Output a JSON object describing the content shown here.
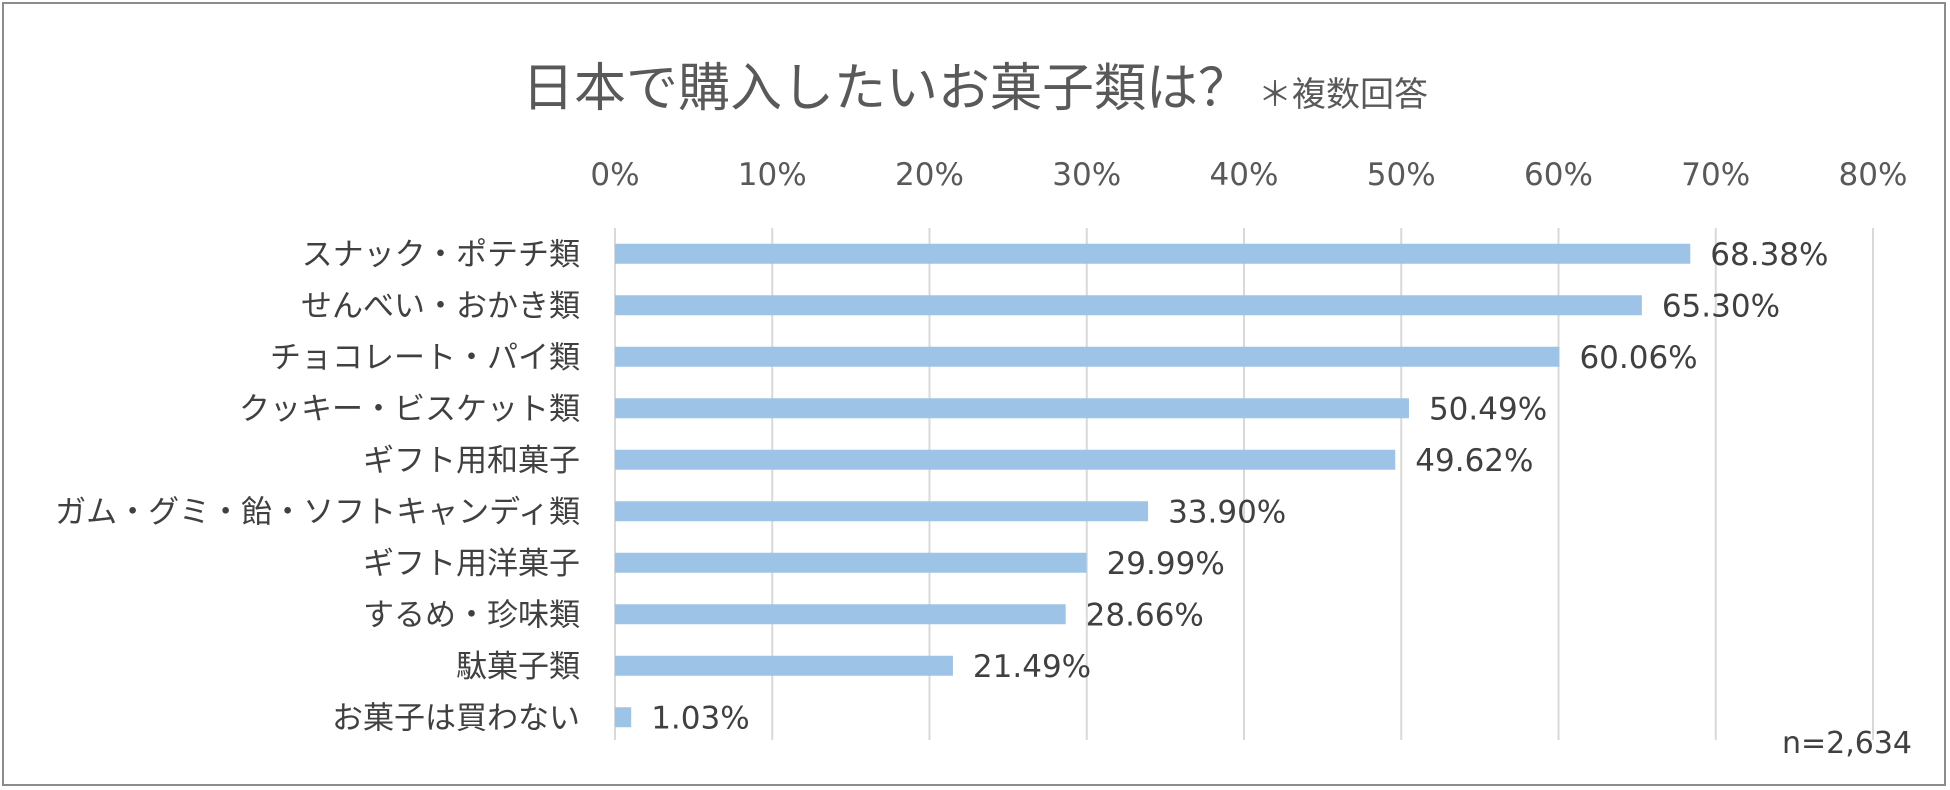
{
  "chart_data": {
    "type": "bar",
    "orientation": "horizontal",
    "title": "日本で購入したいお菓子類は？",
    "subtitle": "＊複数回答",
    "categories": [
      "スナック・ポテチ類",
      "せんべい・おかき類",
      "チョコレート・パイ類",
      "クッキー・ビスケット類",
      "ギフト用和菓子",
      "ガム・グミ・飴・ソフトキャンディ類",
      "ギフト用洋菓子",
      "するめ・珍味類",
      "駄菓子類",
      "お菓子は買わない"
    ],
    "values": [
      68.38,
      65.3,
      60.06,
      50.49,
      49.62,
      33.9,
      29.99,
      28.66,
      21.49,
      1.03
    ],
    "data_labels": [
      "68.38%",
      "65.30%",
      "60.06%",
      "50.49%",
      "49.62%",
      "33.90%",
      "29.99%",
      "28.66%",
      "21.49%",
      "1.03%"
    ],
    "x_ticks": [
      0,
      10,
      20,
      30,
      40,
      50,
      60,
      70,
      80
    ],
    "x_tick_labels": [
      "0%",
      "10%",
      "20%",
      "30%",
      "40%",
      "50%",
      "60%",
      "70%",
      "80%"
    ],
    "xlim": [
      0,
      80
    ],
    "axis_position": "top",
    "grid": true,
    "legend": false,
    "bar_color": "#9dc3e6",
    "grid_color": "#d9d9d9",
    "note": "n=2,634"
  }
}
